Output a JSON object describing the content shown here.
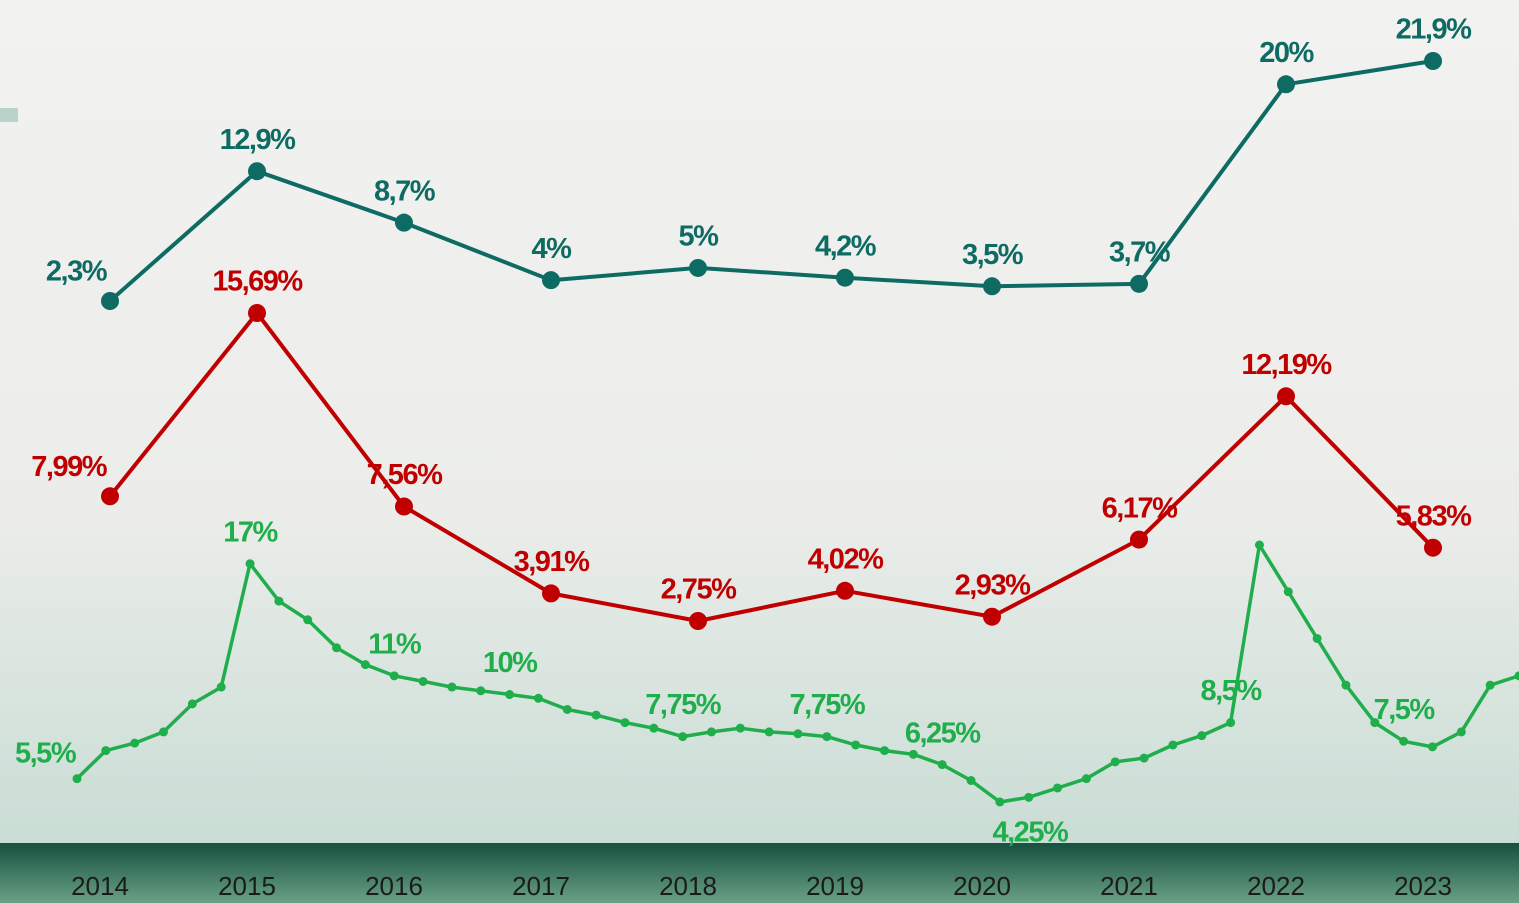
{
  "chart_data": [
    {
      "type": "line",
      "categories": [
        "2014",
        "2015",
        "2016",
        "2017",
        "2018",
        "2019",
        "2020",
        "2021",
        "2022",
        "2023"
      ],
      "series": [
        {
          "color": "#0e6b63",
          "values": [
            2.3,
            12.9,
            8.7,
            4,
            5,
            4.2,
            3.5,
            3.7,
            20,
            21.9
          ],
          "value_labels": [
            "2,3%",
            "12,9%",
            "8,7%",
            "4%",
            "5%",
            "4,2%",
            "3,5%",
            "3,7%",
            "20%",
            "21,9%"
          ]
        },
        {
          "color": "#c00000",
          "values": [
            7.99,
            15.69,
            7.56,
            3.91,
            2.75,
            4.02,
            2.93,
            6.17,
            12.19,
            5.83
          ],
          "value_labels": [
            "7,99%",
            "15,69%",
            "7,56%",
            "3,91%",
            "2,75%",
            "4,02%",
            "2,93%",
            "6,17%",
            "12,19%",
            "5,83%"
          ]
        }
      ]
    },
    {
      "type": "line",
      "categories": [
        null,
        null,
        null,
        null,
        null,
        null,
        null,
        null,
        null,
        null,
        null,
        null,
        null,
        null,
        null,
        null,
        null,
        null,
        null,
        null,
        null,
        null,
        null,
        null,
        null,
        null,
        null,
        null,
        null,
        null,
        null,
        null,
        null,
        null,
        null,
        null,
        null,
        null,
        null,
        null,
        null,
        null,
        null,
        null,
        null,
        null,
        null,
        null,
        null,
        null,
        null
      ],
      "series": [
        {
          "color": "#1fae4b",
          "values": [
            5.5,
            7,
            7.4,
            8,
            9.5,
            10.4,
            17,
            15,
            14,
            12.5,
            11.6,
            11,
            10.7,
            10.4,
            10.2,
            10,
            9.8,
            9.2,
            8.9,
            8.5,
            8.2,
            7.75,
            8,
            8.2,
            8,
            7.9,
            7.75,
            7.3,
            7,
            6.8,
            6.25,
            5.4,
            4.25,
            4.5,
            5,
            5.5,
            6.4,
            6.6,
            7.3,
            7.8,
            8.5,
            18,
            15.5,
            13,
            10.5,
            8.5,
            7.5,
            7.2,
            8,
            10.5,
            11
          ],
          "value_labels": [
            "5,5%",
            null,
            null,
            null,
            null,
            null,
            "17%",
            null,
            null,
            null,
            null,
            "11%",
            null,
            null,
            null,
            "10%",
            null,
            null,
            null,
            null,
            null,
            "7,75%",
            null,
            null,
            null,
            null,
            "7,75%",
            null,
            null,
            null,
            "6,25%",
            null,
            "4,25%",
            null,
            null,
            null,
            null,
            null,
            null,
            null,
            "8,5%",
            null,
            null,
            null,
            null,
            null,
            "7,5%",
            null,
            null,
            null,
            null
          ]
        }
      ]
    }
  ]
}
